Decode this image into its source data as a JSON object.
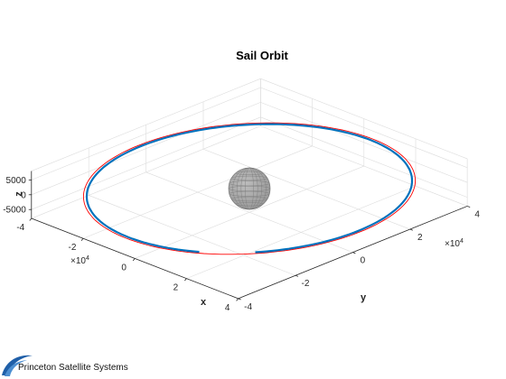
{
  "chart_data": {
    "type": "line3d",
    "title": "Sail Orbit",
    "xlabel": "x",
    "ylabel": "y",
    "zlabel": "z",
    "xlim": [
      -40000,
      40000
    ],
    "ylim": [
      -40000,
      40000
    ],
    "zlim": [
      -8000,
      8000
    ],
    "x_ticks": [
      "-4",
      "-2",
      "0",
      "2",
      "4"
    ],
    "y_ticks": [
      "-4",
      "-2",
      "0",
      "2",
      "4"
    ],
    "z_ticks": [
      "5000",
      "0",
      "-5000"
    ],
    "x_exponent": {
      "base": "×10",
      "power": "4"
    },
    "y_exponent": {
      "base": "×10",
      "power": "4"
    },
    "grid": true,
    "central_body": {
      "shape": "sphere",
      "radius": 6378,
      "color": "#9a9a9a"
    },
    "series": [
      {
        "color": "#ff0000",
        "line": "thin",
        "radius": 43000,
        "start_deg": -40,
        "end_deg": 355,
        "dz": 0
      },
      {
        "color": "#0072bd",
        "line": "thick",
        "radius": 42164,
        "start_deg": -40,
        "end_deg": 300,
        "dz": 0
      }
    ]
  },
  "footer": {
    "text": "Princeton Satellite Systems",
    "logo": "pss-swoosh-logo"
  }
}
